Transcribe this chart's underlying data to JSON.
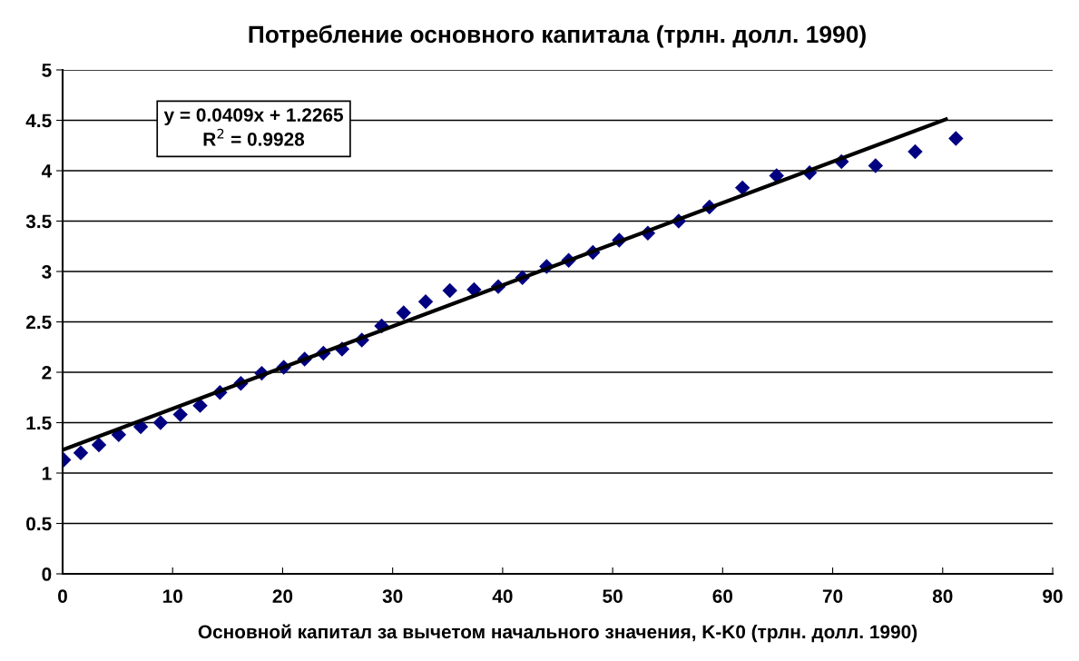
{
  "chart_data": {
    "type": "scatter",
    "title": "Потребление основного капитала (трлн. долл. 1990)",
    "xlabel": "Основной капитал за вычетом начального значения, K-K0 (трлн. долл. 1990)",
    "xlim": [
      0,
      90
    ],
    "xticks": [
      0,
      10,
      20,
      30,
      40,
      50,
      60,
      70,
      80,
      90
    ],
    "ylim": [
      0,
      5
    ],
    "yticks": [
      0,
      0.5,
      1,
      1.5,
      2,
      2.5,
      3,
      3.5,
      4,
      4.5,
      5
    ],
    "grid": "y",
    "legend": false,
    "marker": "diamond",
    "annotations": [
      "y = 0.0409x + 1.2265\nR$^{2}$ = 0.9928"
    ],
    "series": [
      {
        "color": "#000080",
        "x": [
          0.1,
          1.65,
          3.3,
          5.1,
          7.1,
          8.9,
          10.7,
          12.5,
          14.3,
          16.2,
          18.1,
          20.1,
          22.0,
          23.7,
          25.4,
          27.2,
          29.0,
          31.0,
          33.0,
          35.2,
          37.4,
          39.6,
          41.8,
          44.0,
          46.0,
          48.2,
          50.6,
          53.2,
          56.0,
          58.8,
          61.8,
          64.9,
          67.9,
          70.8,
          73.9,
          77.5,
          81.2
        ],
        "values": [
          1.13,
          1.2,
          1.28,
          1.38,
          1.46,
          1.5,
          1.58,
          1.67,
          1.8,
          1.89,
          1.99,
          2.05,
          2.13,
          2.19,
          2.23,
          2.32,
          2.46,
          2.59,
          2.7,
          2.81,
          2.82,
          2.85,
          2.94,
          3.05,
          3.11,
          3.19,
          3.31,
          3.38,
          3.5,
          3.64,
          3.83,
          3.95,
          3.98,
          4.09,
          4.05,
          4.19,
          4.32
        ]
      },
      {
        "type": "line",
        "color": "#000000",
        "marker": "none",
        "x": [
          0,
          80.3
        ],
        "values": [
          1.23,
          4.51
        ]
      }
    ]
  }
}
